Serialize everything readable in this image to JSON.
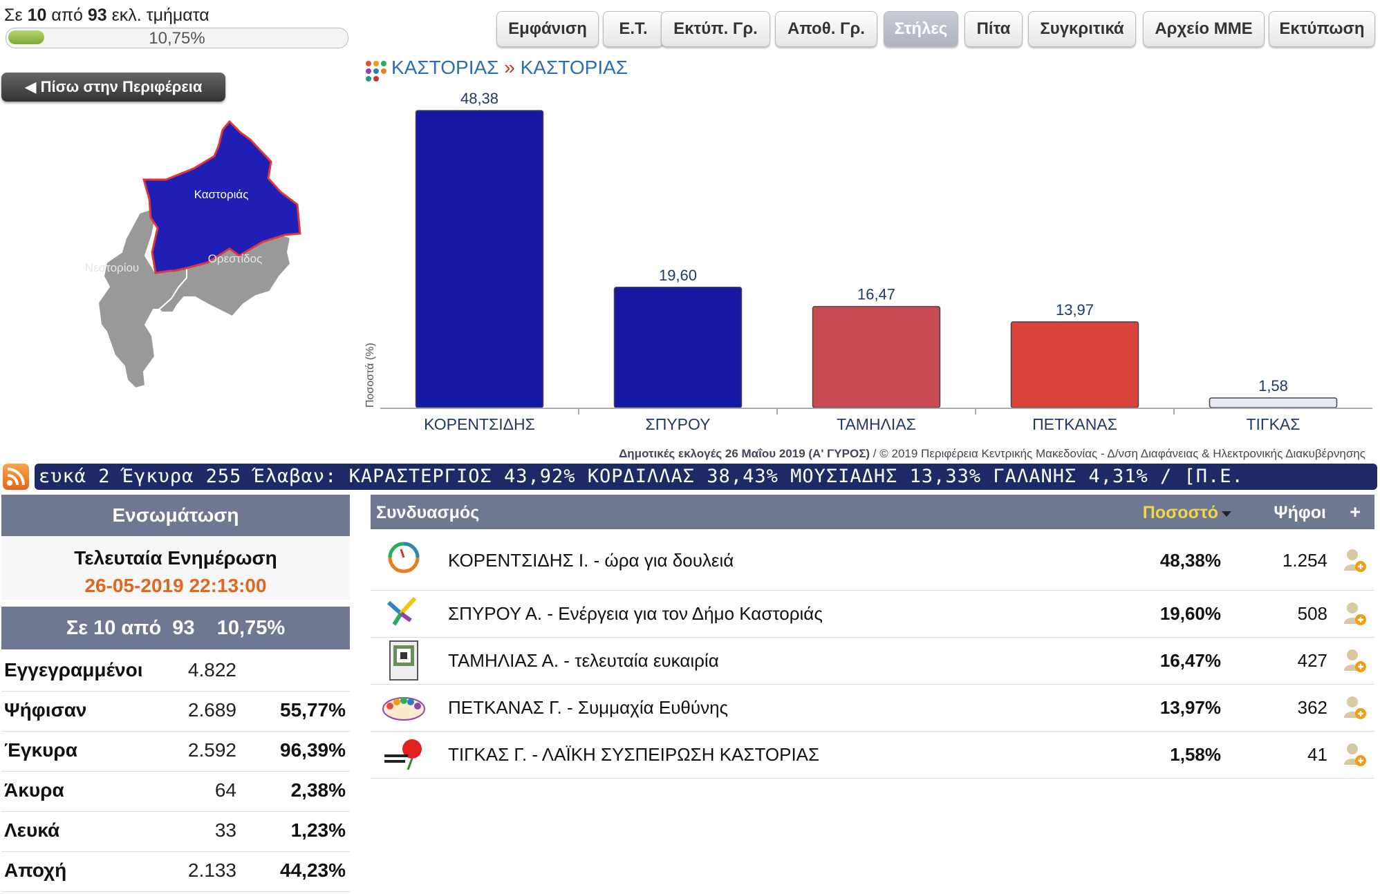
{
  "progress": {
    "prefix": "Σε",
    "counted": "10",
    "mid": "από",
    "total": "93",
    "suffix": "εκλ. τμήματα",
    "percent_label": "10,75%",
    "fraction": 0.1075
  },
  "toolbar": [
    {
      "label": "Εμφάνιση",
      "active": false
    },
    {
      "label": "Ε.Τ.",
      "active": false
    },
    {
      "label": "Εκτύπ. Γρ.",
      "active": false
    },
    {
      "label": "Αποθ. Γρ.",
      "active": false
    },
    {
      "label": "Στήλες",
      "active": true
    },
    {
      "label": "Πίτα",
      "active": false
    },
    {
      "label": "Συγκριτικά",
      "active": false
    },
    {
      "label": "Αρχείο ΜΜΕ",
      "active": false
    },
    {
      "label": "Εκτύπωση",
      "active": false
    }
  ],
  "back_button": "◀ Πίσω στην Περιφέρεια",
  "map": {
    "selected": "Καστοριάς",
    "others": [
      "Νεστορίου",
      "Ορεστίδος"
    ],
    "selected_color": "#1f1fb5",
    "border_color": "#e0353b"
  },
  "breadcrumb": {
    "level1": "ΚΑΣΤΟΡΙΑΣ",
    "separator": "»",
    "level2": "ΚΑΣΤΟΡΙΑΣ"
  },
  "chart_data": {
    "type": "bar",
    "categories": [
      "ΚΟΡΕΝΤΣΙΔΗΣ",
      "ΣΠΥΡΟΥ",
      "ΤΑΜΗΛΙΑΣ",
      "ΠΕΤΚΑΝΑΣ",
      "ΤΙΓΚΑΣ"
    ],
    "values": [
      48.38,
      19.6,
      16.47,
      13.97,
      1.58
    ],
    "value_labels": [
      "48,38",
      "19,60",
      "16,47",
      "13,97",
      "1,58"
    ],
    "colors": [
      "#1518a3",
      "#1518a3",
      "#c84b52",
      "#d9433a",
      "#e8eaf2"
    ],
    "ylabel": "Ποσοστά (%)",
    "ylim": [
      0,
      48.38
    ],
    "grid": false,
    "footnote_bold": "Δημοτικές εκλογές 26 Μαΐου 2019 (Α' ΓΥΡΟΣ)",
    "footnote_rest": " / © 2019 Περιφέρεια Κεντρικής Μακεδονίας - Δ/νση Διαφάνειας & Ηλεκτρονικής Διακυβέρνησης"
  },
  "ticker": "ευκά 2  Έγκυρα 255  Έλαβαν: ΚΑΡΑΣΤΕΡΓΙΟΣ 43,92%  ΚΟΡΔΙΛΛΑΣ 38,43%  ΜΟΥΣΙΑΔΗΣ 13,33%  ΓΑΛΑΝΗΣ 4,31%  /  [Π.Ε.",
  "left_panel": {
    "integration_title": "Ενσωμάτωση",
    "last_update_label": "Τελευταία Ενημέρωση",
    "last_update_value": "26-05-2019 22:13:00",
    "progress_summary": "Σε 10 από  93    10,75%",
    "stats": [
      {
        "label": "Εγγεγραμμένοι",
        "value": "4.822",
        "pct": ""
      },
      {
        "label": "Ψήφισαν",
        "value": "2.689",
        "pct": "55,77%"
      },
      {
        "label": "Έγκυρα",
        "value": "2.592",
        "pct": "96,39%"
      },
      {
        "label": "Άκυρα",
        "value": "64",
        "pct": "2,38%"
      },
      {
        "label": "Λευκά",
        "value": "33",
        "pct": "1,23%"
      },
      {
        "label": "Αποχή",
        "value": "2.133",
        "pct": "44,23%"
      }
    ]
  },
  "results_table": {
    "col_party": "Συνδυασμός",
    "col_pct": "Ποσοστό",
    "col_votes": "Ψήφοι",
    "col_add": "+",
    "rows": [
      {
        "name": "ΚΟΡΕΝΤΣΙΔΗΣ Ι. - ώρα για δουλειά",
        "pct": "48,38%",
        "votes": "1.254",
        "logo_text": "ώρα για δουλειά"
      },
      {
        "name": "ΣΠΥΡΟΥ Α. - Ενέργεια για τον Δήμο Καστοριάς",
        "pct": "19,60%",
        "votes": "508",
        "logo_text": "Ενέργεια"
      },
      {
        "name": "ΤΑΜΗΛΙΑΣ Α. - τελευταία ευκαιρία",
        "pct": "16,47%",
        "votes": "427",
        "logo_text": ""
      },
      {
        "name": "ΠΕΤΚΑΝΑΣ Γ. - Συμμαχία Ευθύνης",
        "pct": "13,97%",
        "votes": "362",
        "logo_text": "Συμμαχία Ευθύνης"
      },
      {
        "name": "ΤΙΓΚΑΣ Γ. - ΛΑΪΚΗ ΣΥΣΠΕΙΡΩΣΗ ΚΑΣΤΟΡΙΑΣ",
        "pct": "1,58%",
        "votes": "41",
        "logo_text": "ΛΑΪΚΗ ΣΥΣΠΕΙΡΩΣΗ"
      }
    ]
  }
}
